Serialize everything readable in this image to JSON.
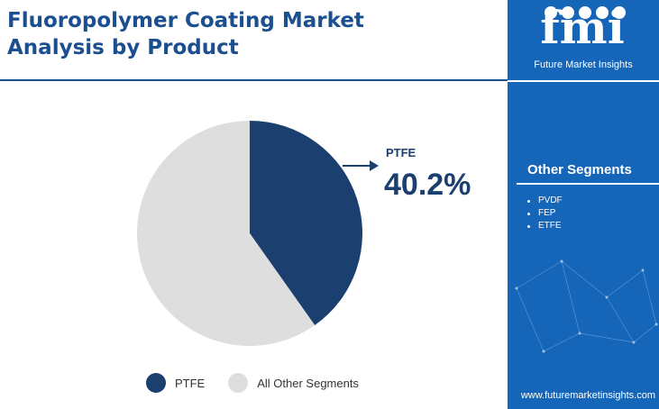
{
  "title_line1": "Fluoropolymer Coating Market",
  "title_line2": "Analysis by Product",
  "logo": {
    "text": "fmi",
    "subtitle": "Future Market Insights"
  },
  "sidebar": {
    "heading": "Other Segments",
    "items": [
      "PVDF",
      "FEP",
      "ETFE"
    ],
    "url": "www.futuremarketinsights.com"
  },
  "colors": {
    "primary": "#1b3f6e",
    "accent": "#1565b8",
    "other": "#dedede"
  },
  "chart_data": {
    "type": "pie",
    "title": "Fluoropolymer Coating Market Analysis by Product",
    "slices": [
      {
        "label": "PTFE",
        "value": 40.2,
        "color": "#1b3f6e"
      },
      {
        "label": "All Other Segments",
        "value": 59.8,
        "color": "#dedede"
      }
    ],
    "callout": {
      "label": "PTFE",
      "value": "40.2%"
    },
    "legend": "bottom"
  }
}
